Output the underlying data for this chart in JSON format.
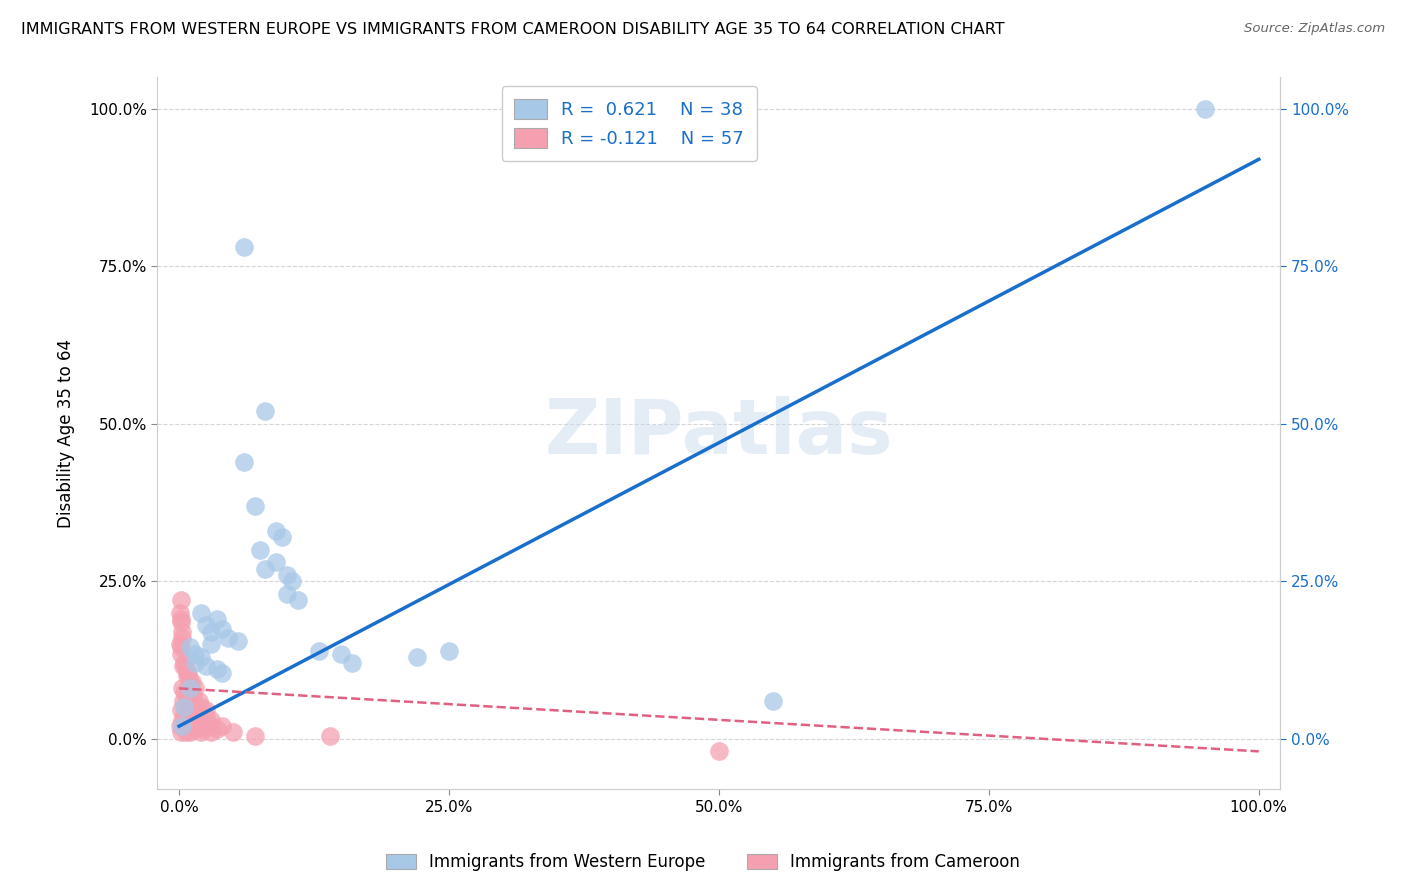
{
  "title": "IMMIGRANTS FROM WESTERN EUROPE VS IMMIGRANTS FROM CAMEROON DISABILITY AGE 35 TO 64 CORRELATION CHART",
  "source": "Source: ZipAtlas.com",
  "xlabel": "",
  "ylabel": "Disability Age 35 to 64",
  "watermark": "ZIPatlas",
  "blue_R": 0.621,
  "blue_N": 38,
  "pink_R": -0.121,
  "pink_N": 57,
  "blue_color": "#a8c8e8",
  "pink_color": "#f4a0b0",
  "blue_line_color": "#1a6fcc",
  "pink_line_color": "#e06080",
  "blue_scatter": [
    [
      95.0,
      100.0
    ],
    [
      6.0,
      78.0
    ],
    [
      8.0,
      52.0
    ],
    [
      6.0,
      44.0
    ],
    [
      7.0,
      37.0
    ],
    [
      9.0,
      33.0
    ],
    [
      9.5,
      32.0
    ],
    [
      7.5,
      30.0
    ],
    [
      9.0,
      28.0
    ],
    [
      8.0,
      27.0
    ],
    [
      10.0,
      26.0
    ],
    [
      10.5,
      25.0
    ],
    [
      10.0,
      23.0
    ],
    [
      11.0,
      22.0
    ],
    [
      2.0,
      20.0
    ],
    [
      3.5,
      19.0
    ],
    [
      2.5,
      18.0
    ],
    [
      3.0,
      17.0
    ],
    [
      4.0,
      17.5
    ],
    [
      4.5,
      16.0
    ],
    [
      3.0,
      15.0
    ],
    [
      5.5,
      15.5
    ],
    [
      1.0,
      14.5
    ],
    [
      1.5,
      13.5
    ],
    [
      2.0,
      13.0
    ],
    [
      13.0,
      14.0
    ],
    [
      15.0,
      13.5
    ],
    [
      22.0,
      13.0
    ],
    [
      25.0,
      14.0
    ],
    [
      1.5,
      12.0
    ],
    [
      2.5,
      11.5
    ],
    [
      3.5,
      11.0
    ],
    [
      4.0,
      10.5
    ],
    [
      16.0,
      12.0
    ],
    [
      55.0,
      6.0
    ],
    [
      1.0,
      8.0
    ],
    [
      0.5,
      5.0
    ],
    [
      0.3,
      2.0
    ]
  ],
  "pink_scatter": [
    [
      0.1,
      20.0
    ],
    [
      0.15,
      19.0
    ],
    [
      0.2,
      18.5
    ],
    [
      0.25,
      17.0
    ],
    [
      0.3,
      16.0
    ],
    [
      0.1,
      15.0
    ],
    [
      0.2,
      14.5
    ],
    [
      0.15,
      13.5
    ],
    [
      0.5,
      12.0
    ],
    [
      0.4,
      11.5
    ],
    [
      0.6,
      11.0
    ],
    [
      0.8,
      10.5
    ],
    [
      0.7,
      10.0
    ],
    [
      0.9,
      9.5
    ],
    [
      1.2,
      9.0
    ],
    [
      1.0,
      8.5
    ],
    [
      1.5,
      8.0
    ],
    [
      0.3,
      8.0
    ],
    [
      0.5,
      7.5
    ],
    [
      0.8,
      7.0
    ],
    [
      1.0,
      7.0
    ],
    [
      1.3,
      6.5
    ],
    [
      1.8,
      6.0
    ],
    [
      0.4,
      6.0
    ],
    [
      0.6,
      5.5
    ],
    [
      0.9,
      5.5
    ],
    [
      1.5,
      5.0
    ],
    [
      2.0,
      5.0
    ],
    [
      2.5,
      4.5
    ],
    [
      0.2,
      4.5
    ],
    [
      0.5,
      4.0
    ],
    [
      1.0,
      4.0
    ],
    [
      1.8,
      3.5
    ],
    [
      2.5,
      3.5
    ],
    [
      3.0,
      3.0
    ],
    [
      0.3,
      3.0
    ],
    [
      0.7,
      3.0
    ],
    [
      1.2,
      2.5
    ],
    [
      2.0,
      2.5
    ],
    [
      3.0,
      2.0
    ],
    [
      4.0,
      2.0
    ],
    [
      0.1,
      2.0
    ],
    [
      0.4,
      2.0
    ],
    [
      0.8,
      1.5
    ],
    [
      1.5,
      1.5
    ],
    [
      2.2,
      1.5
    ],
    [
      3.5,
      1.5
    ],
    [
      0.2,
      1.0
    ],
    [
      0.6,
      1.0
    ],
    [
      1.0,
      1.0
    ],
    [
      2.0,
      1.0
    ],
    [
      3.0,
      1.0
    ],
    [
      5.0,
      1.0
    ],
    [
      7.0,
      0.5
    ],
    [
      14.0,
      0.5
    ],
    [
      50.0,
      -2.0
    ],
    [
      0.15,
      22.0
    ]
  ],
  "blue_trend_x": [
    0,
    100
  ],
  "blue_trend_y": [
    2,
    92
  ],
  "pink_trend_x": [
    0,
    100
  ],
  "pink_trend_y": [
    8.0,
    -2.0
  ],
  "xlim": [
    -2,
    102
  ],
  "ylim": [
    -8,
    105
  ],
  "xtick_positions": [
    0,
    25,
    50,
    75,
    100
  ],
  "xtick_labels": [
    "0.0%",
    "25.0%",
    "50.0%",
    "75.0%",
    "100.0%"
  ],
  "ytick_positions": [
    0,
    25,
    50,
    75,
    100
  ],
  "ytick_labels": [
    "0.0%",
    "25.0%",
    "50.0%",
    "75.0%",
    "100.0%"
  ],
  "right_ytick_positions": [
    0,
    25,
    50,
    75,
    100
  ],
  "right_ytick_labels": [
    "0.0%",
    "25.0%",
    "50.0%",
    "75.0%",
    "100.0%"
  ],
  "grid_color": "#cccccc",
  "background_color": "#ffffff",
  "legend_label_blue": "Immigrants from Western Europe",
  "legend_label_pink": "Immigrants from Cameroon"
}
